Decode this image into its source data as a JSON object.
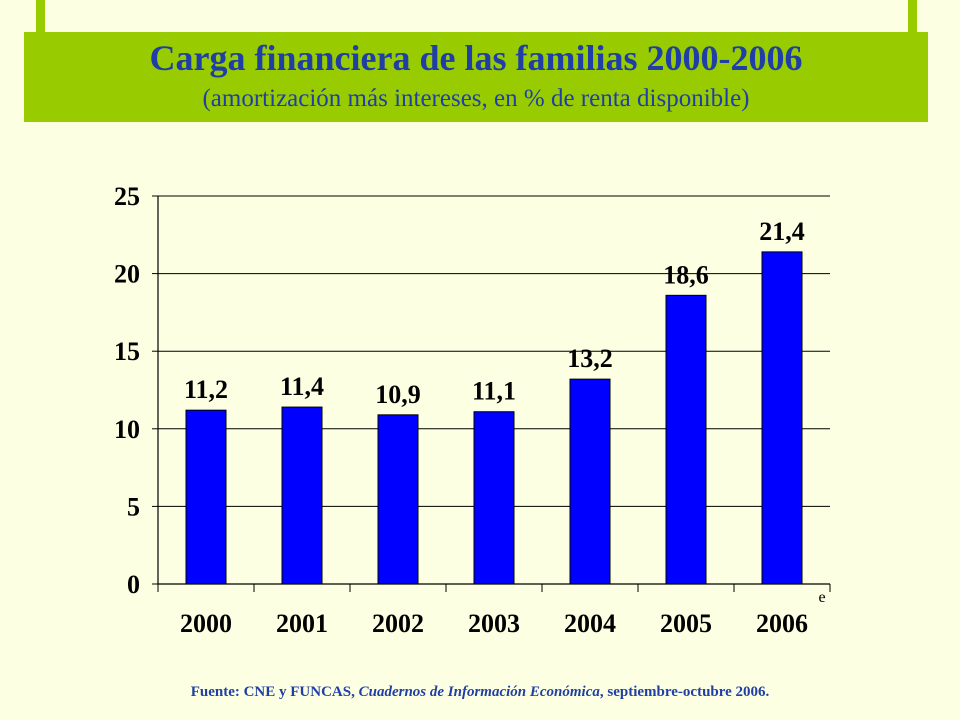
{
  "header": {
    "title": "Carga financiera de las familias 2000-2006",
    "subtitle": "(amortización más intereses, en % de renta disponible)"
  },
  "footer": {
    "source_prefix": "Fuente: CNE y FUNCAS, ",
    "source_title": "Cuadernos de Información Económica",
    "source_suffix": ", septiembre-octubre 2006."
  },
  "colors": {
    "background": "#fcffe1",
    "band": "#99cc00",
    "title": "#1f3fa6",
    "bar": "#0000ff",
    "grid": "#000000"
  },
  "chart_data": {
    "type": "bar",
    "title": "",
    "xlabel": "",
    "ylabel": "",
    "categories": [
      "2000",
      "2001",
      "2002",
      "2003",
      "2004",
      "2005",
      "2006"
    ],
    "values": [
      11.2,
      11.4,
      10.9,
      11.1,
      13.2,
      18.6,
      21.4
    ],
    "data_labels": [
      "11,2",
      "11,4",
      "10,9",
      "11,1",
      "13,2",
      "18,6",
      "21,4"
    ],
    "yticks": [
      0,
      5,
      10,
      15,
      20,
      25
    ],
    "ylim": [
      0,
      25
    ],
    "grid": true,
    "annotation": "e",
    "legend": "none"
  }
}
